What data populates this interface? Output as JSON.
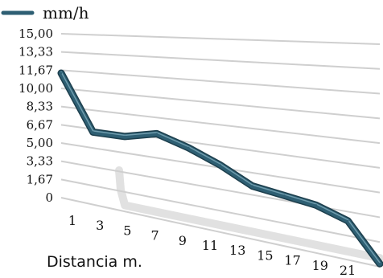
{
  "chart_data": {
    "type": "line",
    "view": "3d-perspective",
    "xlabel": "Distancia m.",
    "ylabel": "",
    "ylim": [
      0,
      15
    ],
    "y_ticks": [
      "15,00",
      "13,33",
      "11,67",
      "10,00",
      "8,33",
      "6,67",
      "5,00",
      "3,33",
      "1,67",
      "0"
    ],
    "x_ticks": [
      "1",
      "3",
      "5",
      "7",
      "9",
      "11",
      "13",
      "15",
      "17",
      "19",
      "21"
    ],
    "grid": true,
    "legend_position": "top-left",
    "series": [
      {
        "name": "mm/h",
        "color": "#2e5f73",
        "x": [
          1,
          3,
          5,
          7,
          9,
          11,
          13,
          15,
          17,
          19,
          21
        ],
        "values": [
          11.4,
          6.4,
          6.4,
          7.0,
          6.2,
          5.2,
          4.0,
          3.7,
          3.4,
          2.7,
          0.2
        ]
      }
    ]
  }
}
